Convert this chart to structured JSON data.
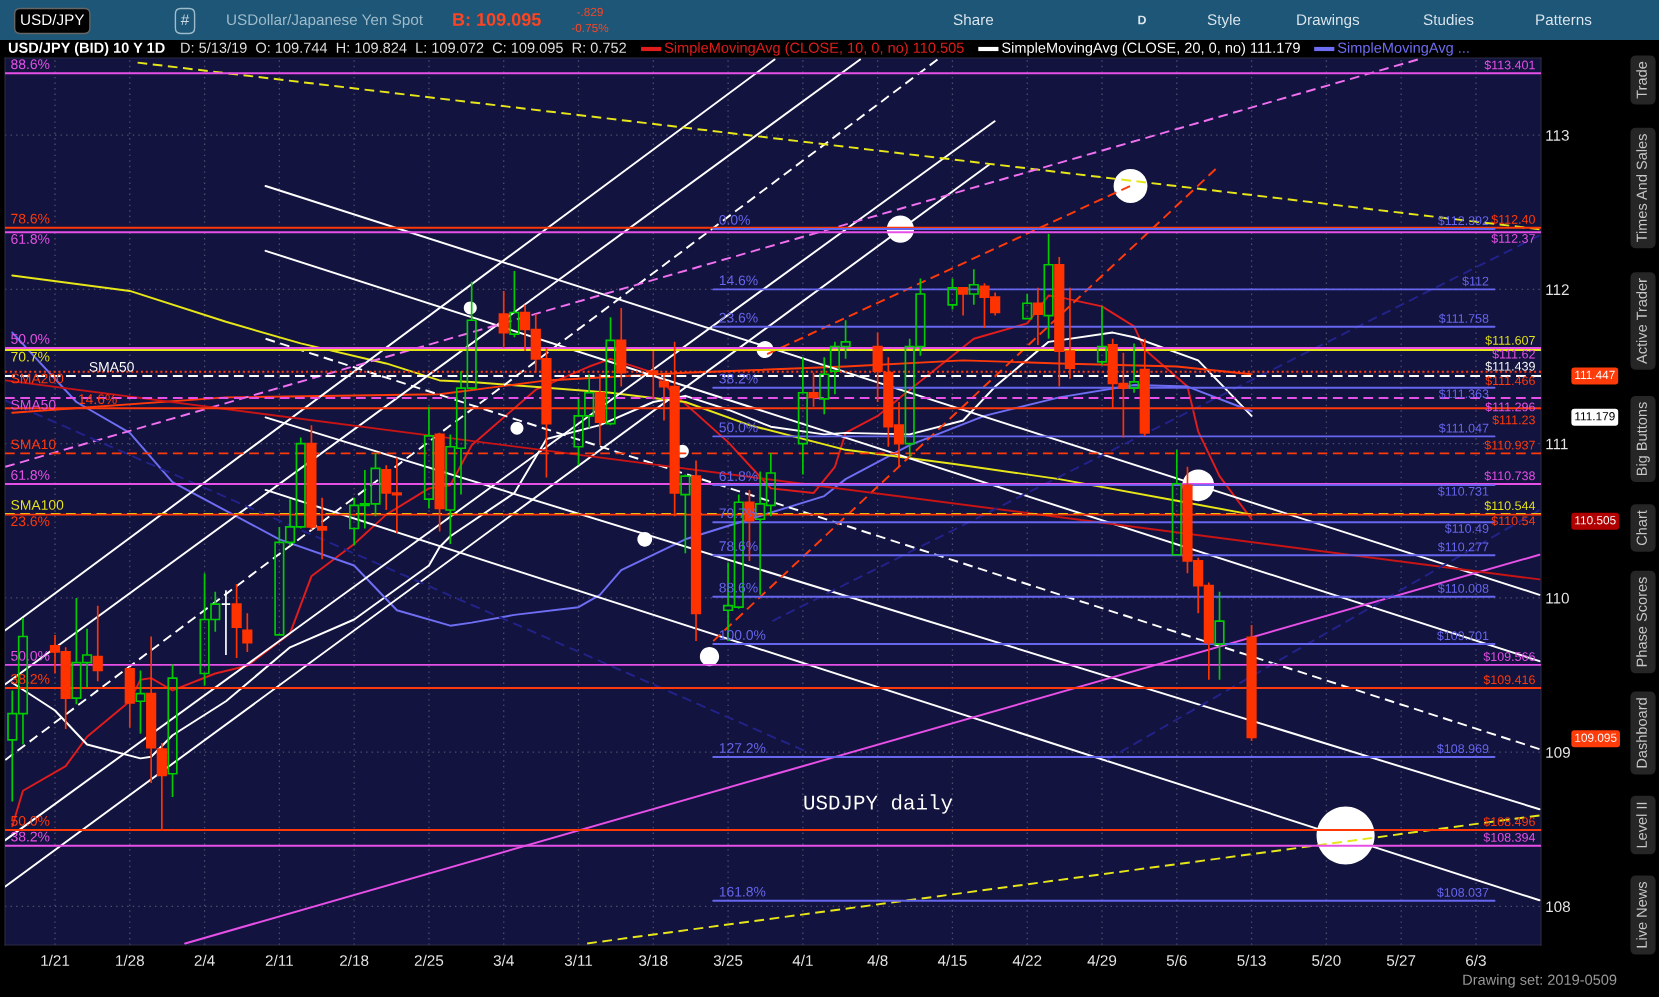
{
  "chart_data": {
    "type": "candlestick",
    "title": "USD/JPY (BID) 10 Y 1D",
    "subtitle": "D: 5/13/19  O: 109.744  H: 109.824  L: 109.072  C: 109.095  R: 0.752",
    "x": [
      "2019-01-17",
      "2019-01-18",
      "2019-01-21",
      "2019-01-22",
      "2019-01-23",
      "2019-01-24",
      "2019-01-25",
      "2019-01-28",
      "2019-01-29",
      "2019-01-30",
      "2019-01-31",
      "2019-02-01",
      "2019-02-04",
      "2019-02-05",
      "2019-02-06",
      "2019-02-07",
      "2019-02-08",
      "2019-02-11",
      "2019-02-12",
      "2019-02-13",
      "2019-02-14",
      "2019-02-15",
      "2019-02-18",
      "2019-02-19",
      "2019-02-20",
      "2019-02-21",
      "2019-02-22",
      "2019-02-25",
      "2019-02-26",
      "2019-02-27",
      "2019-02-28",
      "2019-03-01",
      "2019-03-04",
      "2019-03-05",
      "2019-03-06",
      "2019-03-07",
      "2019-03-08",
      "2019-03-11",
      "2019-03-12",
      "2019-03-13",
      "2019-03-14",
      "2019-03-15",
      "2019-03-18",
      "2019-03-19",
      "2019-03-20",
      "2019-03-21",
      "2019-03-22",
      "2019-03-25",
      "2019-03-26",
      "2019-03-27",
      "2019-03-28",
      "2019-03-29",
      "2019-04-01",
      "2019-04-02",
      "2019-04-03",
      "2019-04-04",
      "2019-04-05",
      "2019-04-08",
      "2019-04-09",
      "2019-04-10",
      "2019-04-11",
      "2019-04-12",
      "2019-04-15",
      "2019-04-16",
      "2019-04-17",
      "2019-04-18",
      "2019-04-19",
      "2019-04-22",
      "2019-04-23",
      "2019-04-24",
      "2019-04-25",
      "2019-04-26",
      "2019-04-29",
      "2019-04-30",
      "2019-05-01",
      "2019-05-02",
      "2019-05-03",
      "2019-05-06",
      "2019-05-07",
      "2019-05-08",
      "2019-05-09",
      "2019-05-10",
      "2019-05-13"
    ],
    "ohlc": [
      [
        109.08,
        109.4,
        108.68,
        109.25
      ],
      [
        109.25,
        109.87,
        109.05,
        109.75
      ],
      [
        109.69,
        109.76,
        109.51,
        109.65
      ],
      [
        109.65,
        109.68,
        109.15,
        109.35
      ],
      [
        109.35,
        110.0,
        109.31,
        109.58
      ],
      [
        109.58,
        109.8,
        109.42,
        109.63
      ],
      [
        109.62,
        109.95,
        109.46,
        109.53
      ],
      [
        109.54,
        109.55,
        109.16,
        109.32
      ],
      [
        109.33,
        109.53,
        109.12,
        109.38
      ],
      [
        109.38,
        109.75,
        108.8,
        109.03
      ],
      [
        109.02,
        109.06,
        108.49,
        108.85
      ],
      [
        108.86,
        109.57,
        108.71,
        109.48
      ],
      [
        109.51,
        110.16,
        109.43,
        109.86
      ],
      [
        109.86,
        110.04,
        109.78,
        109.96
      ],
      [
        109.96,
        110.05,
        109.63,
        109.96
      ],
      [
        109.96,
        110.09,
        109.61,
        109.81
      ],
      [
        109.79,
        109.9,
        109.65,
        109.71
      ],
      [
        109.76,
        110.46,
        109.76,
        110.36
      ],
      [
        110.36,
        110.64,
        110.34,
        110.46
      ],
      [
        110.46,
        111.04,
        110.45,
        111.0
      ],
      [
        111.0,
        111.12,
        110.44,
        110.46
      ],
      [
        110.46,
        110.65,
        110.25,
        110.44
      ],
      [
        110.45,
        110.65,
        110.34,
        110.6
      ],
      [
        110.6,
        110.83,
        110.45,
        110.61
      ],
      [
        110.61,
        110.94,
        110.53,
        110.84
      ],
      [
        110.83,
        110.86,
        110.57,
        110.68
      ],
      [
        110.68,
        110.91,
        110.42,
        110.67
      ],
      [
        110.64,
        111.24,
        110.58,
        111.05
      ],
      [
        111.06,
        111.07,
        110.43,
        110.58
      ],
      [
        110.57,
        111.06,
        110.35,
        110.98
      ],
      [
        110.97,
        111.47,
        110.67,
        111.36
      ],
      [
        111.36,
        112.05,
        111.35,
        111.8
      ],
      [
        111.84,
        111.99,
        111.62,
        111.72
      ],
      [
        111.71,
        112.12,
        111.69,
        111.85
      ],
      [
        111.85,
        111.9,
        111.6,
        111.74
      ],
      [
        111.74,
        111.84,
        111.46,
        111.55
      ],
      [
        111.55,
        111.62,
        110.78,
        111.13
      ],
      [
        110.98,
        111.29,
        110.86,
        111.18
      ],
      [
        111.18,
        111.45,
        111.1,
        111.33
      ],
      [
        111.33,
        111.45,
        110.99,
        111.14
      ],
      [
        111.13,
        111.82,
        111.12,
        111.67
      ],
      [
        111.67,
        111.88,
        111.37,
        111.46
      ],
      [
        111.47,
        111.6,
        111.29,
        111.45
      ],
      [
        111.4,
        111.46,
        111.15,
        111.37
      ],
      [
        111.37,
        111.66,
        110.53,
        110.68
      ],
      [
        110.67,
        110.8,
        110.29,
        110.79
      ],
      [
        110.79,
        110.89,
        109.72,
        109.9
      ],
      [
        109.92,
        110.23,
        109.72,
        109.95
      ],
      [
        109.94,
        110.67,
        109.93,
        110.62
      ],
      [
        110.62,
        110.7,
        110.24,
        110.5
      ],
      [
        110.51,
        110.82,
        110.02,
        110.61
      ],
      [
        110.6,
        110.94,
        110.53,
        110.81
      ],
      [
        111.0,
        111.56,
        110.8,
        111.33
      ],
      [
        111.33,
        111.46,
        111.24,
        111.3
      ],
      [
        111.29,
        111.56,
        111.19,
        111.45
      ],
      [
        111.47,
        111.66,
        111.32,
        111.63
      ],
      [
        111.63,
        111.8,
        111.55,
        111.66
      ],
      [
        111.63,
        111.72,
        111.27,
        111.47
      ],
      [
        111.46,
        111.56,
        110.98,
        111.11
      ],
      [
        111.12,
        111.27,
        110.85,
        111.0
      ],
      [
        111.0,
        111.68,
        110.91,
        111.63
      ],
      [
        111.63,
        112.07,
        111.57,
        111.97
      ],
      [
        111.9,
        112.07,
        111.87,
        112.01
      ],
      [
        112.01,
        112.01,
        111.83,
        111.97
      ],
      [
        111.97,
        112.13,
        111.9,
        112.03
      ],
      [
        112.02,
        112.04,
        111.75,
        111.95
      ],
      [
        111.95,
        111.98,
        111.83,
        111.85
      ],
      [
        111.81,
        111.97,
        111.81,
        111.91
      ],
      [
        111.91,
        112.01,
        111.64,
        111.84
      ],
      [
        111.83,
        112.36,
        111.68,
        112.16
      ],
      [
        112.16,
        112.21,
        111.37,
        111.6
      ],
      [
        111.6,
        112.01,
        111.42,
        111.49
      ],
      [
        111.53,
        111.89,
        111.51,
        111.63
      ],
      [
        111.64,
        111.68,
        111.23,
        111.39
      ],
      [
        111.39,
        111.59,
        111.04,
        111.36
      ],
      [
        111.36,
        111.65,
        111.33,
        111.4
      ],
      [
        111.48,
        111.68,
        111.05,
        111.07
      ],
      [
        110.28,
        110.96,
        110.28,
        110.74
      ],
      [
        110.73,
        110.85,
        110.16,
        110.24
      ],
      [
        110.24,
        110.26,
        109.9,
        110.08
      ],
      [
        110.08,
        110.1,
        109.47,
        109.71
      ],
      [
        109.7,
        110.04,
        109.47,
        109.85
      ],
      [
        109.744,
        109.824,
        109.072,
        109.095
      ]
    ],
    "colors": [
      "#00cc00",
      "#00cc00",
      "#ff3300",
      "#ff3300",
      "#00cc00",
      "#00cc00",
      "#ff3300",
      "#ff3300",
      "#00cc00",
      "#ff3300",
      "#ff3300",
      "#00cc00",
      "#00cc00",
      "#00cc00",
      "#ffffff",
      "#ff3300",
      "#ff3300",
      "#00cc00",
      "#00cc00",
      "#00cc00",
      "#ff3300",
      "#ff3300",
      "#00cc00",
      "#00cc00",
      "#00cc00",
      "#ff3300",
      "#ff3300",
      "#00cc00",
      "#ff3300",
      "#00cc00",
      "#00cc00",
      "#00cc00",
      "#ff3300",
      "#00cc00",
      "#ff3300",
      "#ff3300",
      "#ff3300",
      "#00cc00",
      "#00cc00",
      "#ff3300",
      "#00cc00",
      "#ff3300",
      "#ff3300",
      "#ff3300",
      "#ff3300",
      "#00cc00",
      "#ff3300",
      "#00cc00",
      "#00cc00",
      "#ff3300",
      "#00cc00",
      "#00cc00",
      "#00cc00",
      "#ff3300",
      "#00cc00",
      "#00cc00",
      "#00cc00",
      "#ff3300",
      "#ff3300",
      "#ff3300",
      "#00cc00",
      "#00cc00",
      "#00cc00",
      "#ff3300",
      "#00cc00",
      "#ff3300",
      "#ff3300",
      "#00cc00",
      "#ff3300",
      "#00cc00",
      "#ff3300",
      "#ff3300",
      "#00cc00",
      "#ff3300",
      "#ff3300",
      "#00cc00",
      "#ff3300",
      "#00cc00",
      "#ff3300",
      "#ff3300",
      "#ff3300",
      "#00cc00",
      "#ff3300"
    ],
    "xlim": [
      "2019-01-16T07:40",
      "2019-06-09T02:10"
    ],
    "ylim": [
      107.75,
      113.5
    ],
    "xticks": [
      {
        "value": "2019-01-21",
        "label": "1/21"
      },
      {
        "value": "2019-01-28",
        "label": "1/28"
      },
      {
        "value": "2019-02-04",
        "label": "2/4"
      },
      {
        "value": "2019-02-11",
        "label": "2/11"
      },
      {
        "value": "2019-02-18",
        "label": "2/18"
      },
      {
        "value": "2019-02-25",
        "label": "2/25"
      },
      {
        "value": "2019-03-04",
        "label": "3/4"
      },
      {
        "value": "2019-03-11",
        "label": "3/11"
      },
      {
        "value": "2019-03-18",
        "label": "3/18"
      },
      {
        "value": "2019-03-25",
        "label": "3/25"
      },
      {
        "value": "2019-04-01",
        "label": "4/1"
      },
      {
        "value": "2019-04-08",
        "label": "4/8"
      },
      {
        "value": "2019-04-15",
        "label": "4/15"
      },
      {
        "value": "2019-04-22",
        "label": "4/22"
      },
      {
        "value": "2019-04-29",
        "label": "4/29"
      },
      {
        "value": "2019-05-06",
        "label": "5/6"
      },
      {
        "value": "2019-05-13",
        "label": "5/13"
      },
      {
        "value": "2019-05-20",
        "label": "5/20"
      },
      {
        "value": "2019-05-27",
        "label": "5/27"
      },
      {
        "value": "2019-06-03",
        "label": "6/3"
      }
    ],
    "yticks": [
      108,
      109,
      110,
      111,
      112,
      113
    ],
    "y2lim": [
      107.75,
      113.5
    ],
    "y2ticks": [
      111.447,
      111.179,
      110.505,
      109.095
    ],
    "grid": true,
    "legend": "top",
    "series": [
      {
        "type": "line",
        "name": "SimpleMovingAvg (CLOSE, 10, 0, no) 110.505",
        "color": "#e01c1c",
        "x": [
          "2019-01-17",
          "2019-01-18",
          "2019-01-22",
          "2019-01-24",
          "2019-01-28",
          "2019-01-29",
          "2019-01-30",
          "2019-02-01",
          "2019-02-05",
          "2019-02-08",
          "2019-02-12",
          "2019-02-14",
          "2019-02-18",
          "2019-02-21",
          "2019-02-25",
          "2019-02-27",
          "2019-03-01",
          "2019-03-07",
          "2019-03-12",
          "2019-03-14",
          "2019-03-18",
          "2019-03-20",
          "2019-03-25",
          "2019-03-27",
          "2019-03-29",
          "2019-04-02",
          "2019-04-04",
          "2019-04-05",
          "2019-04-08",
          "2019-04-11",
          "2019-04-17",
          "2019-04-22",
          "2019-04-24",
          "2019-04-25",
          "2019-04-29",
          "2019-05-02",
          "2019-05-03",
          "2019-05-07",
          "2019-05-08",
          "2019-05-10",
          "2019-05-13"
        ],
        "values": [
          108.52,
          108.75,
          108.91,
          109.1,
          109.33,
          109.47,
          109.48,
          109.4,
          109.51,
          109.56,
          109.77,
          110.14,
          110.35,
          110.54,
          110.71,
          110.73,
          110.99,
          111.35,
          111.5,
          111.55,
          111.46,
          111.32,
          111.01,
          110.86,
          110.71,
          110.68,
          110.85,
          111.07,
          111.18,
          111.35,
          111.68,
          111.78,
          111.96,
          111.95,
          111.89,
          111.76,
          111.61,
          111.37,
          111.08,
          110.79,
          110.51
        ]
      },
      {
        "type": "line",
        "name": "SimpleMovingAvg (CLOSE, 20, 0, no) 111.179",
        "color": "#ffffff",
        "x": [
          "2019-01-17",
          "2019-01-21",
          "2019-01-24",
          "2019-01-29",
          "2019-01-30",
          "2019-02-01",
          "2019-02-06",
          "2019-02-12",
          "2019-02-18",
          "2019-02-25",
          "2019-02-26",
          "2019-02-27",
          "2019-03-05",
          "2019-03-08",
          "2019-03-13",
          "2019-03-18",
          "2019-03-21",
          "2019-03-25",
          "2019-03-29",
          "2019-04-03",
          "2019-04-05",
          "2019-04-11",
          "2019-04-16",
          "2019-04-19",
          "2019-04-24",
          "2019-04-30",
          "2019-05-02",
          "2019-05-08",
          "2019-05-13"
        ],
        "values": [
          109.45,
          109.27,
          109.05,
          108.96,
          108.97,
          109.11,
          109.33,
          109.68,
          109.86,
          110.21,
          110.33,
          110.4,
          110.68,
          111.03,
          111.12,
          111.27,
          111.31,
          111.22,
          111.11,
          111.06,
          111.07,
          111.06,
          111.15,
          111.37,
          111.66,
          111.72,
          111.69,
          111.54,
          111.18
        ]
      },
      {
        "type": "line",
        "name": "SimpleMovingAvg ...",
        "color": "#6e6ef5",
        "x": [
          "2019-01-17",
          "2019-01-23",
          "2019-01-28",
          "2019-02-01",
          "2019-02-11",
          "2019-02-18",
          "2019-02-22",
          "2019-02-27",
          "2019-03-01",
          "2019-03-05",
          "2019-03-11",
          "2019-03-13",
          "2019-03-15",
          "2019-03-21",
          "2019-03-27",
          "2019-04-03",
          "2019-04-05",
          "2019-04-11",
          "2019-04-18",
          "2019-04-25",
          "2019-05-02",
          "2019-05-07",
          "2019-05-13"
        ],
        "values": [
          111.72,
          111.27,
          111.07,
          110.75,
          110.38,
          110.21,
          109.92,
          109.82,
          109.84,
          109.89,
          109.94,
          110.02,
          110.18,
          110.38,
          110.51,
          110.66,
          110.77,
          110.99,
          111.18,
          111.3,
          111.38,
          111.37,
          111.21
        ]
      },
      {
        "type": "line",
        "color": "#e6e619",
        "x": [
          "2019-01-17",
          "2019-01-28",
          "2019-02-06",
          "2019-02-13",
          "2019-02-21",
          "2019-02-26",
          "2019-03-01",
          "2019-03-14",
          "2019-03-21",
          "2019-03-27",
          "2019-04-05",
          "2019-04-15",
          "2019-04-25",
          "2019-05-06",
          "2019-05-13"
        ],
        "values": [
          112.09,
          111.99,
          111.79,
          111.65,
          111.52,
          111.41,
          111.4,
          111.33,
          111.27,
          111.12,
          110.96,
          110.87,
          110.77,
          110.63,
          110.54
        ]
      },
      {
        "type": "line",
        "color": "#ff3a0a",
        "x": [
          "2019-01-17",
          "2019-02-06",
          "2019-02-26",
          "2019-03-08",
          "2019-03-21",
          "2019-04-05",
          "2019-04-16",
          "2019-04-25",
          "2019-05-06",
          "2019-05-13"
        ],
        "values": [
          111.2,
          111.3,
          111.32,
          111.41,
          111.46,
          111.5,
          111.54,
          111.52,
          111.5,
          111.45
        ]
      },
      {
        "type": "line",
        "color": "#ffffff",
        "x": [
          "2019-01-16T08:18",
          "2019-03-29T08:24"
        ],
        "values": [
          109.79,
          113.49
        ]
      },
      {
        "type": "line",
        "color": "#ffffff",
        "x": [
          "2019-01-16T08:18",
          "2019-04-06T08:38"
        ],
        "values": [
          109.44,
          113.49
        ]
      },
      {
        "type": "line",
        "color": "#ffffff",
        "line_style": "dashed",
        "x": [
          "2019-01-16T08:18",
          "2019-04-13T14:24"
        ],
        "values": [
          108.95,
          113.49
        ]
      },
      {
        "type": "line",
        "color": "#ffffff",
        "x": [
          "2019-01-16T08:18",
          "2019-04-18T22:48"
        ],
        "values": [
          108.43,
          113.09
        ]
      },
      {
        "type": "line",
        "color": "#ffffff",
        "x": [
          "2019-01-16T08:18",
          "2019-04-18T10:48"
        ],
        "values": [
          108.13,
          112.81
        ]
      },
      {
        "type": "line",
        "color": "#ffffff",
        "x": [
          "2019-02-09T17:02",
          "2019-06-08T22:48"
        ],
        "values": [
          112.67,
          110.02
        ]
      },
      {
        "type": "line",
        "color": "#ffffff",
        "x": [
          "2019-02-09T17:02",
          "2019-06-08T22:48"
        ],
        "values": [
          112.25,
          109.59
        ]
      },
      {
        "type": "line",
        "color": "#ffffff",
        "line_style": "dashed",
        "x": [
          "2019-02-09T17:02",
          "2019-06-08T22:48"
        ],
        "values": [
          111.68,
          109.02
        ]
      },
      {
        "type": "line",
        "color": "#ffffff",
        "x": [
          "2019-02-09T17:02",
          "2019-06-08T22:48"
        ],
        "values": [
          111.17,
          108.63
        ]
      },
      {
        "type": "line",
        "color": "#ffffff",
        "x": [
          "2019-02-09T17:02",
          "2019-06-08T22:48"
        ],
        "values": [
          110.7,
          108.04
        ]
      },
      {
        "type": "line",
        "color": "#e6e619",
        "line_style": "dashed",
        "x": [
          "2019-01-28T17:31",
          "2019-06-08T22:48"
        ],
        "values": [
          113.47,
          112.39
        ]
      },
      {
        "type": "line",
        "color": "#e6e619",
        "line_style": "dashed",
        "x": [
          "2019-03-11T19:26",
          "2019-06-08T22:48"
        ],
        "values": [
          107.76,
          108.59
        ]
      },
      {
        "type": "line",
        "color": "#f070f0",
        "line_style": "dashed",
        "x": [
          "2019-01-16T08:18",
          "2019-05-28T13:26"
        ],
        "values": [
          110.85,
          113.49
        ]
      },
      {
        "type": "line",
        "color": "#ff3a0a",
        "line_style": "dashed",
        "x": [
          "2019-03-23T14:38",
          "2019-05-09T15:22"
        ],
        "values": [
          109.72,
          112.78
        ]
      },
      {
        "type": "line",
        "color": "#ff3a0a",
        "line_style": "dashed",
        "x": [
          "2019-03-28T15:36",
          "2019-05-01T14:53"
        ],
        "values": [
          111.58,
          112.67
        ]
      },
      {
        "type": "line",
        "color": "#e650e6",
        "x": [
          "2019-02-02T04:19",
          "2019-06-08T22:48"
        ],
        "values": [
          107.76,
          110.28
        ]
      },
      {
        "type": "line",
        "color": "#c81414",
        "x": [
          "2019-01-16T08:18",
          "2019-06-08T22:48"
        ],
        "values": [
          111.41,
          110.12
        ]
      },
      {
        "type": "line",
        "color": "#22228a",
        "line_style": "dashed",
        "x": [
          "2019-01-16T08:18",
          "2019-04-01T02:53"
        ],
        "values": [
          111.28,
          109.01
        ]
      },
      {
        "type": "line",
        "color": "#22228a",
        "line_style": "dashed",
        "x": [
          "2019-03-29T03:36",
          "2019-06-08T22:48"
        ],
        "values": [
          109.85,
          112.35
        ]
      },
      {
        "type": "line",
        "color": "#22228a",
        "line_style": "dashed",
        "x": [
          "2019-04-29T10:48",
          "2019-06-08T22:48"
        ],
        "values": [
          108.95,
          110.57
        ]
      },
      {
        "type": "line",
        "name": "88.6%",
        "color": "#e650e6",
        "x": [
          "2019-01-16T07:40",
          "2019-06-09T02:10"
        ],
        "values": [
          113.401,
          113.401
        ],
        "value_labels": [
          null,
          "$113.401"
        ]
      },
      {
        "type": "line",
        "name": "78.6%",
        "color": "#ff3a0a",
        "x": [
          "2019-01-16T07:40",
          "2019-06-09T02:10"
        ],
        "values": [
          112.4,
          112.4
        ],
        "value_labels": [
          null,
          "$112.40"
        ]
      },
      {
        "type": "line",
        "name": "61.8%",
        "color": "#e650e6",
        "x": [
          "2019-01-16T07:40",
          "2019-06-09T02:10"
        ],
        "values": [
          112.37,
          112.37
        ],
        "value_labels": [
          null,
          "$112.37"
        ]
      },
      {
        "type": "line",
        "name": "50.0%",
        "color": "#e650e6",
        "x": [
          "2019-01-16T07:40",
          "2019-06-09T02:10"
        ],
        "values": [
          111.62,
          111.62
        ],
        "value_labels": [
          null,
          "$111.62"
        ]
      },
      {
        "type": "line",
        "name": "70.7%",
        "color": "#e6e619",
        "x": [
          "2019-01-16T07:40",
          "2019-06-09T02:10"
        ],
        "values": [
          111.607,
          111.607
        ],
        "value_labels": [
          null,
          "$111.607"
        ]
      },
      {
        "type": "line",
        "name": "SMA200",
        "color": "#ff3a0a",
        "line_style": "dotted",
        "x": [
          "2019-01-16T07:40",
          "2019-06-09T02:10"
        ],
        "values": [
          111.466,
          111.466
        ],
        "value_labels": [
          null,
          "$111.466"
        ]
      },
      {
        "type": "line",
        "name": "SMA50",
        "color": "#ffffff",
        "line_style": "dashed",
        "x": [
          "2019-01-16T07:40",
          "2019-06-09T02:10"
        ],
        "values": [
          111.439,
          111.439
        ],
        "value_labels": [
          null,
          "$111.439"
        ]
      },
      {
        "type": "line",
        "name": "SMA50",
        "color": "#e650e6",
        "line_style": "dashed",
        "x": [
          "2019-01-16T07:40",
          "2019-06-09T02:10"
        ],
        "values": [
          111.296,
          111.296
        ],
        "value_labels": [
          null,
          "$111.296"
        ]
      },
      {
        "type": "line",
        "name": "14.6%",
        "color": "#ff3a0a",
        "x": [
          "2019-01-16T07:40",
          "2019-06-09T02:10"
        ],
        "values": [
          111.23,
          111.23
        ],
        "value_labels": [
          null,
          "$111.23"
        ]
      },
      {
        "type": "line",
        "name": "SMA10",
        "color": "#ff3a0a",
        "line_style": "dashed",
        "x": [
          "2019-01-16T07:40",
          "2019-06-09T02:10"
        ],
        "values": [
          110.937,
          110.937
        ],
        "value_labels": [
          null,
          "$110.937"
        ]
      },
      {
        "type": "line",
        "name": "61.8%",
        "color": "#e650e6",
        "x": [
          "2019-01-16T07:40",
          "2019-06-09T02:10"
        ],
        "values": [
          110.738,
          110.738
        ],
        "value_labels": [
          null,
          "$110.738"
        ]
      },
      {
        "type": "line",
        "name": "SMA100",
        "color": "#e6e619",
        "line_style": "dashed",
        "x": [
          "2019-01-16T07:40",
          "2019-06-09T02:10"
        ],
        "values": [
          110.544,
          110.544
        ],
        "value_labels": [
          null,
          "$110.544"
        ]
      },
      {
        "type": "line",
        "name": "23.6%",
        "color": "#ff3a0a",
        "x": [
          "2019-01-16T07:40",
          "2019-06-09T02:10"
        ],
        "values": [
          110.54,
          110.54
        ],
        "value_labels": [
          null,
          "$110.54"
        ]
      },
      {
        "type": "line",
        "name": "50.0%",
        "color": "#e650e6",
        "x": [
          "2019-01-16T07:40",
          "2019-06-09T02:10"
        ],
        "values": [
          109.566,
          109.566
        ],
        "value_labels": [
          null,
          "$109.566"
        ]
      },
      {
        "type": "line",
        "name": "38.2%",
        "color": "#ff3a0a",
        "x": [
          "2019-01-16T07:40",
          "2019-06-09T02:10"
        ],
        "values": [
          109.416,
          109.416
        ],
        "value_labels": [
          null,
          "$109.416"
        ]
      },
      {
        "type": "line",
        "name": "50.0%",
        "color": "#ff3a0a",
        "x": [
          "2019-01-16T07:40",
          "2019-06-09T02:10"
        ],
        "values": [
          108.496,
          108.496
        ],
        "value_labels": [
          null,
          "$108.496"
        ]
      },
      {
        "type": "line",
        "name": "38.2%",
        "color": "#e650e6",
        "x": [
          "2019-01-16T07:40",
          "2019-06-09T02:10"
        ],
        "values": [
          108.394,
          108.394
        ],
        "value_labels": [
          null,
          "$108.394"
        ]
      },
      {
        "type": "line",
        "name": "0.0%",
        "color": "#6666ee",
        "x": [
          "2019-03-23T14:38",
          "2019-06-04T17:46"
        ],
        "values": [
          112.392,
          112.392
        ],
        "value_labels": [
          null,
          "$112.392"
        ]
      },
      {
        "type": "line",
        "name": "14.6%",
        "color": "#6666ee",
        "x": [
          "2019-03-23T14:38",
          "2019-06-04T17:46"
        ],
        "values": [
          112.0,
          112.0
        ],
        "value_labels": [
          null,
          "$112"
        ]
      },
      {
        "type": "line",
        "name": "23.6%",
        "color": "#6666ee",
        "x": [
          "2019-03-23T14:38",
          "2019-06-04T17:46"
        ],
        "values": [
          111.758,
          111.758
        ],
        "value_labels": [
          null,
          "$111.758"
        ]
      },
      {
        "type": "line",
        "name": "38.2%",
        "color": "#6666ee",
        "x": [
          "2019-03-23T14:38",
          "2019-06-04T17:46"
        ],
        "values": [
          111.363,
          111.363
        ],
        "value_labels": [
          null,
          "$111.363"
        ]
      },
      {
        "type": "line",
        "name": "50.0%",
        "color": "#6666ee",
        "x": [
          "2019-03-23T14:38",
          "2019-06-04T17:46"
        ],
        "values": [
          111.047,
          111.047
        ],
        "value_labels": [
          null,
          "$111.047"
        ]
      },
      {
        "type": "line",
        "name": "61.8%",
        "color": "#6666ee",
        "x": [
          "2019-03-23T14:38",
          "2019-06-04T17:46"
        ],
        "values": [
          110.731,
          110.731
        ],
        "value_labels": [
          null,
          "$110.731"
        ]
      },
      {
        "type": "line",
        "name": "70.7%",
        "color": "#6666ee",
        "x": [
          "2019-03-23T14:38",
          "2019-06-04T17:46"
        ],
        "values": [
          110.49,
          110.49
        ],
        "value_labels": [
          null,
          "$110.49"
        ]
      },
      {
        "type": "line",
        "name": "78.6%",
        "color": "#6666ee",
        "x": [
          "2019-03-23T14:38",
          "2019-06-04T17:46"
        ],
        "values": [
          110.277,
          110.277
        ],
        "value_labels": [
          null,
          "$110.277"
        ]
      },
      {
        "type": "line",
        "name": "88.6%",
        "color": "#6666ee",
        "x": [
          "2019-03-23T14:38",
          "2019-06-04T17:46"
        ],
        "values": [
          110.008,
          110.008
        ],
        "value_labels": [
          null,
          "$110.008"
        ]
      },
      {
        "type": "line",
        "name": "100.0%",
        "color": "#6666ee",
        "x": [
          "2019-03-23T14:38",
          "2019-06-04T17:46"
        ],
        "values": [
          109.701,
          109.701
        ],
        "value_labels": [
          null,
          "$109.701"
        ]
      },
      {
        "type": "line",
        "name": "127.2%",
        "color": "#6666ee",
        "x": [
          "2019-03-23T14:38",
          "2019-06-04T17:46"
        ],
        "values": [
          108.969,
          108.969
        ],
        "value_labels": [
          null,
          "$108.969"
        ]
      },
      {
        "type": "line",
        "name": "161.8%",
        "color": "#6666ee",
        "x": [
          "2019-03-23T14:38",
          "2019-06-04T17:46"
        ],
        "values": [
          108.037,
          108.037
        ],
        "value_labels": [
          null,
          "$108.037"
        ]
      },
      {
        "type": "bubble",
        "color": "#ffffff",
        "x": [
          "2019-02-28T20:53",
          "2019-03-05T05:46",
          "2019-03-17T04:48",
          "2019-03-20T17:17",
          "2019-03-23T06:14",
          "2019-03-28T11:02",
          "2019-04-10T03:07",
          "2019-05-01T16:05",
          "2019-05-08T00:14",
          "2019-05-21T19:12"
        ],
        "values": [
          111.88,
          111.1,
          110.38,
          110.95,
          109.62,
          111.61,
          112.39,
          112.67,
          110.73,
          108.46
        ],
        "sizes": [
          0.05,
          0.05,
          0.065,
          0.05,
          0.11,
          0.085,
          0.22,
          0.34,
          0.3,
          1
        ]
      }
    ],
    "annotations": [
      "USD/JPY",
      "#",
      "USDollar/Japanese Yen Spot",
      "B: 109.095",
      "-.829",
      "-0.75%",
      "Share",
      "D",
      "Style",
      "Drawings",
      "Studies",
      "Patterns",
      "Trade",
      "Times And Sales",
      "Active Trader",
      "Big Buttons",
      "Chart",
      "Phase Scores",
      "Dashboard",
      "Level II",
      "Live News",
      "Drawing set: 2019-0509",
      "USDJPY daily"
    ]
  }
}
